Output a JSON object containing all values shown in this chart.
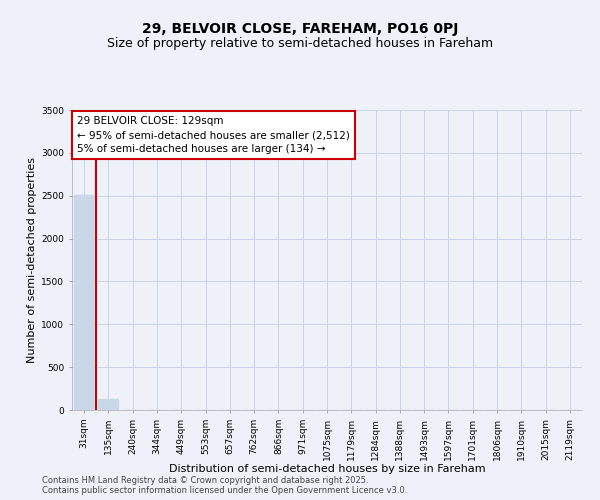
{
  "title_line1": "29, BELVOIR CLOSE, FAREHAM, PO16 0PJ",
  "title_line2": "Size of property relative to semi-detached houses in Fareham",
  "xlabel": "Distribution of semi-detached houses by size in Fareham",
  "ylabel": "Number of semi-detached properties",
  "categories": [
    "31sqm",
    "135sqm",
    "240sqm",
    "344sqm",
    "449sqm",
    "553sqm",
    "657sqm",
    "762sqm",
    "866sqm",
    "971sqm",
    "1075sqm",
    "1179sqm",
    "1284sqm",
    "1388sqm",
    "1493sqm",
    "1597sqm",
    "1701sqm",
    "1806sqm",
    "1910sqm",
    "2015sqm",
    "2119sqm"
  ],
  "values": [
    2512,
    134,
    0,
    0,
    0,
    0,
    0,
    0,
    0,
    0,
    0,
    0,
    0,
    0,
    0,
    0,
    0,
    0,
    0,
    0,
    0
  ],
  "bar_color": "#c8d8e8",
  "grid_color": "#c8d4e8",
  "background_color": "#eef2f8",
  "annotation_title": "29 BELVOIR CLOSE: 129sqm",
  "annotation_line2": "← 95% of semi-detached houses are smaller (2,512)",
  "annotation_line3": "5% of semi-detached houses are larger (134) →",
  "annotation_box_color": "#cc0000",
  "ylim": [
    0,
    3500
  ],
  "yticks": [
    0,
    500,
    1000,
    1500,
    2000,
    2500,
    3000,
    3500
  ],
  "footer_line1": "Contains HM Land Registry data © Crown copyright and database right 2025.",
  "footer_line2": "Contains public sector information licensed under the Open Government Licence v3.0.",
  "title_fontsize": 10,
  "subtitle_fontsize": 9,
  "tick_fontsize": 6.5,
  "ylabel_fontsize": 8,
  "xlabel_fontsize": 8,
  "annotation_fontsize": 7.5,
  "footer_fontsize": 6
}
